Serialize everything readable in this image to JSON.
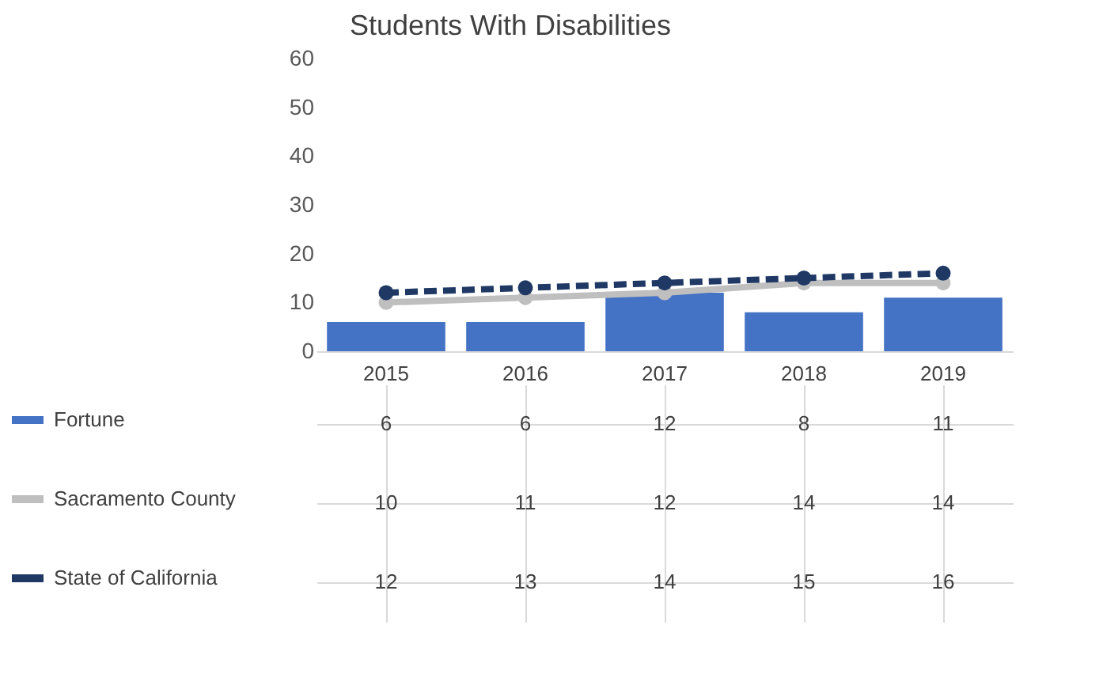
{
  "chart_data": {
    "type": "bar",
    "title": "Students With Disabilities",
    "categories": [
      "2015",
      "2016",
      "2017",
      "2018",
      "2019"
    ],
    "series": [
      {
        "name": "Fortune",
        "color": "#4472c4",
        "values": [
          6,
          6,
          12,
          8,
          11
        ]
      },
      {
        "name": "Sacramento County",
        "type": "line",
        "color": "#bfbfbf",
        "marker": "circle",
        "line_style": "solid",
        "values": [
          10,
          11,
          12,
          14,
          14
        ]
      },
      {
        "name": "State of California",
        "type": "line",
        "color": "#1f3864",
        "marker": "circle",
        "line_style": "dashed",
        "values": [
          12,
          13,
          14,
          15,
          16
        ]
      }
    ],
    "ylim": [
      0,
      60
    ],
    "yticks": [
      0,
      10,
      20,
      30,
      40,
      50,
      60
    ],
    "grid": false,
    "data_labels": true,
    "legend": "bottom left"
  }
}
